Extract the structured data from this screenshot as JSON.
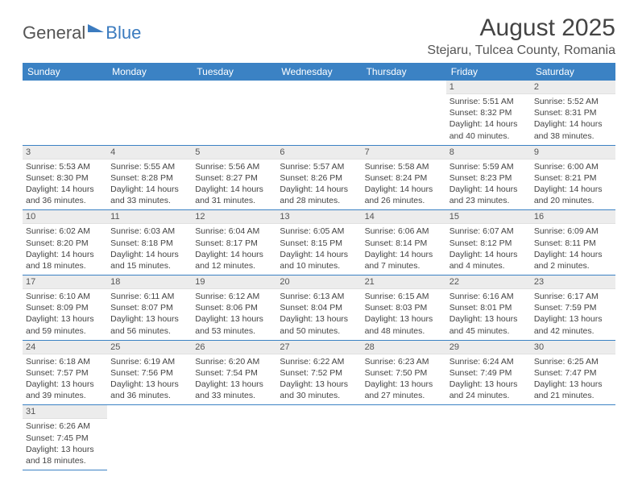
{
  "brand": {
    "part1": "General",
    "part2": "Blue"
  },
  "title": "August 2025",
  "location": "Stejaru, Tulcea County, Romania",
  "colors": {
    "header_bg": "#3b82c4",
    "header_text": "#ffffff",
    "daynum_bg": "#ececec",
    "rule": "#3b82c4"
  },
  "weekdays": [
    "Sunday",
    "Monday",
    "Tuesday",
    "Wednesday",
    "Thursday",
    "Friday",
    "Saturday"
  ],
  "weeks": [
    [
      null,
      null,
      null,
      null,
      null,
      {
        "n": "1",
        "sunrise": "5:51 AM",
        "sunset": "8:32 PM",
        "day_h": "14",
        "day_m": "40"
      },
      {
        "n": "2",
        "sunrise": "5:52 AM",
        "sunset": "8:31 PM",
        "day_h": "14",
        "day_m": "38"
      }
    ],
    [
      {
        "n": "3",
        "sunrise": "5:53 AM",
        "sunset": "8:30 PM",
        "day_h": "14",
        "day_m": "36"
      },
      {
        "n": "4",
        "sunrise": "5:55 AM",
        "sunset": "8:28 PM",
        "day_h": "14",
        "day_m": "33"
      },
      {
        "n": "5",
        "sunrise": "5:56 AM",
        "sunset": "8:27 PM",
        "day_h": "14",
        "day_m": "31"
      },
      {
        "n": "6",
        "sunrise": "5:57 AM",
        "sunset": "8:26 PM",
        "day_h": "14",
        "day_m": "28"
      },
      {
        "n": "7",
        "sunrise": "5:58 AM",
        "sunset": "8:24 PM",
        "day_h": "14",
        "day_m": "26"
      },
      {
        "n": "8",
        "sunrise": "5:59 AM",
        "sunset": "8:23 PM",
        "day_h": "14",
        "day_m": "23"
      },
      {
        "n": "9",
        "sunrise": "6:00 AM",
        "sunset": "8:21 PM",
        "day_h": "14",
        "day_m": "20"
      }
    ],
    [
      {
        "n": "10",
        "sunrise": "6:02 AM",
        "sunset": "8:20 PM",
        "day_h": "14",
        "day_m": "18"
      },
      {
        "n": "11",
        "sunrise": "6:03 AM",
        "sunset": "8:18 PM",
        "day_h": "14",
        "day_m": "15"
      },
      {
        "n": "12",
        "sunrise": "6:04 AM",
        "sunset": "8:17 PM",
        "day_h": "14",
        "day_m": "12"
      },
      {
        "n": "13",
        "sunrise": "6:05 AM",
        "sunset": "8:15 PM",
        "day_h": "14",
        "day_m": "10"
      },
      {
        "n": "14",
        "sunrise": "6:06 AM",
        "sunset": "8:14 PM",
        "day_h": "14",
        "day_m": "7"
      },
      {
        "n": "15",
        "sunrise": "6:07 AM",
        "sunset": "8:12 PM",
        "day_h": "14",
        "day_m": "4"
      },
      {
        "n": "16",
        "sunrise": "6:09 AM",
        "sunset": "8:11 PM",
        "day_h": "14",
        "day_m": "2"
      }
    ],
    [
      {
        "n": "17",
        "sunrise": "6:10 AM",
        "sunset": "8:09 PM",
        "day_h": "13",
        "day_m": "59"
      },
      {
        "n": "18",
        "sunrise": "6:11 AM",
        "sunset": "8:07 PM",
        "day_h": "13",
        "day_m": "56"
      },
      {
        "n": "19",
        "sunrise": "6:12 AM",
        "sunset": "8:06 PM",
        "day_h": "13",
        "day_m": "53"
      },
      {
        "n": "20",
        "sunrise": "6:13 AM",
        "sunset": "8:04 PM",
        "day_h": "13",
        "day_m": "50"
      },
      {
        "n": "21",
        "sunrise": "6:15 AM",
        "sunset": "8:03 PM",
        "day_h": "13",
        "day_m": "48"
      },
      {
        "n": "22",
        "sunrise": "6:16 AM",
        "sunset": "8:01 PM",
        "day_h": "13",
        "day_m": "45"
      },
      {
        "n": "23",
        "sunrise": "6:17 AM",
        "sunset": "7:59 PM",
        "day_h": "13",
        "day_m": "42"
      }
    ],
    [
      {
        "n": "24",
        "sunrise": "6:18 AM",
        "sunset": "7:57 PM",
        "day_h": "13",
        "day_m": "39"
      },
      {
        "n": "25",
        "sunrise": "6:19 AM",
        "sunset": "7:56 PM",
        "day_h": "13",
        "day_m": "36"
      },
      {
        "n": "26",
        "sunrise": "6:20 AM",
        "sunset": "7:54 PM",
        "day_h": "13",
        "day_m": "33"
      },
      {
        "n": "27",
        "sunrise": "6:22 AM",
        "sunset": "7:52 PM",
        "day_h": "13",
        "day_m": "30"
      },
      {
        "n": "28",
        "sunrise": "6:23 AM",
        "sunset": "7:50 PM",
        "day_h": "13",
        "day_m": "27"
      },
      {
        "n": "29",
        "sunrise": "6:24 AM",
        "sunset": "7:49 PM",
        "day_h": "13",
        "day_m": "24"
      },
      {
        "n": "30",
        "sunrise": "6:25 AM",
        "sunset": "7:47 PM",
        "day_h": "13",
        "day_m": "21"
      }
    ],
    [
      {
        "n": "31",
        "sunrise": "6:26 AM",
        "sunset": "7:45 PM",
        "day_h": "13",
        "day_m": "18"
      },
      null,
      null,
      null,
      null,
      null,
      null
    ]
  ],
  "labels": {
    "sunrise": "Sunrise: ",
    "sunset": "Sunset: ",
    "daylight_pre": "Daylight: ",
    "hours_word": " hours and ",
    "minutes_word": " minutes."
  }
}
